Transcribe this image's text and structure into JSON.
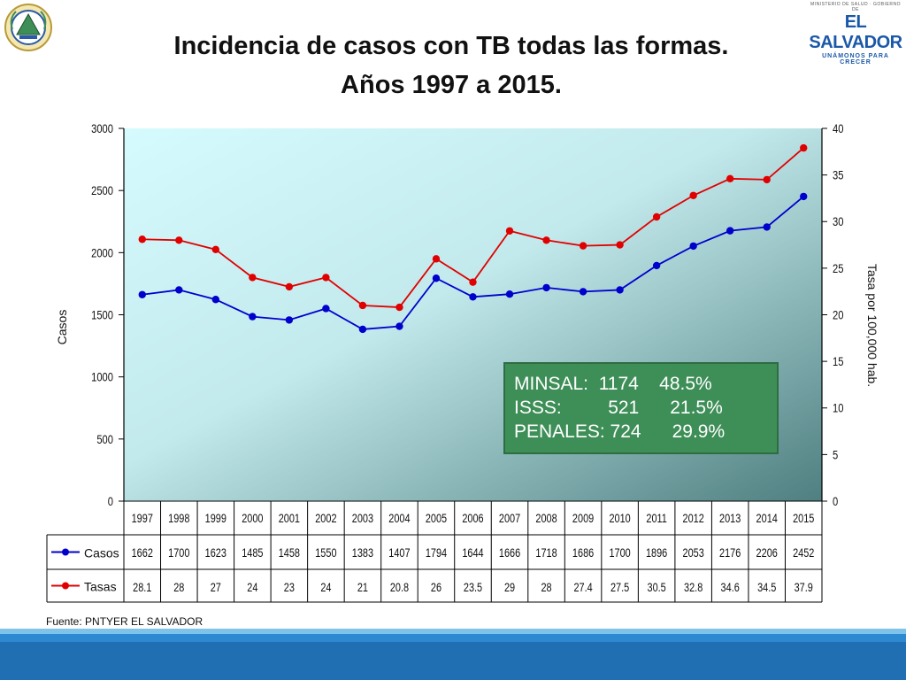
{
  "title": {
    "line1": "Incidencia de casos con TB todas las formas.",
    "line2": "Años 1997 a 2015."
  },
  "logo_right": {
    "top_text": "MINISTERIO DE SALUD · GOBIERNO DE",
    "name": "EL SALVADOR",
    "tagline": "UNÁMONOS PARA CRECER"
  },
  "source": "Fuente: PNTYER EL SALVADOR",
  "infobox": {
    "rows": [
      "MINSAL:  1174    48.5%",
      "ISSS:         521      21.5%",
      "PENALES: 724      29.9%"
    ]
  },
  "colors": {
    "casos": "#0000cc",
    "tasas": "#e10000",
    "infobox_bg": "#3e8e57",
    "footer": "#1f6fb2"
  },
  "chart_data": {
    "type": "line",
    "categories": [
      "1997",
      "1998",
      "1999",
      "2000",
      "2001",
      "2002",
      "2003",
      "2004",
      "2005",
      "2006",
      "2007",
      "2008",
      "2009",
      "2010",
      "2011",
      "2012",
      "2013",
      "2014",
      "2015"
    ],
    "series": [
      {
        "name": "Casos",
        "axis": "left",
        "values": [
          1662,
          1700,
          1623,
          1485,
          1458,
          1550,
          1383,
          1407,
          1794,
          1644,
          1666,
          1718,
          1686,
          1700,
          1896,
          2053,
          2176,
          2206,
          2452
        ]
      },
      {
        "name": "Tasas",
        "axis": "right",
        "values": [
          28.1,
          28,
          27,
          24,
          23,
          24,
          21,
          20.8,
          26,
          23.5,
          29,
          28,
          27.4,
          27.5,
          30.5,
          32.8,
          34.6,
          34.5,
          37.9
        ]
      }
    ],
    "table_labels": [
      "28.1",
      "28",
      "27",
      "24",
      "23",
      "24",
      "21",
      "20.8",
      "26",
      "23.5",
      "29",
      "28",
      "27.4",
      "27.5",
      "30.5",
      "32.8",
      "34.6",
      "34.5",
      "37.9"
    ],
    "ylabel_left": "Casos",
    "ylabel_right": "Tasa por 100,000 hab.",
    "ylim_left": [
      0,
      3000
    ],
    "yticks_left": [
      0,
      500,
      1000,
      1500,
      2000,
      2500,
      3000
    ],
    "ylim_right": [
      0,
      40
    ],
    "yticks_right": [
      0,
      5,
      10,
      15,
      20,
      25,
      30,
      35,
      40
    ],
    "grid": false,
    "legend": "data-table"
  }
}
